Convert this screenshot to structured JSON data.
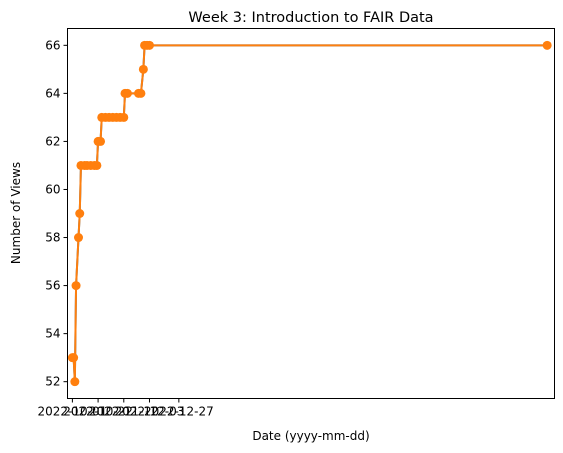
{
  "chart_data": {
    "type": "line",
    "title": "Week 3: Introduction to FAIR Data",
    "xlabel": "Date (yyyy-mm-dd)",
    "ylabel": "Number of Views",
    "ylim": [
      51.3,
      66.7
    ],
    "yticks": [
      52,
      54,
      56,
      58,
      60,
      62,
      64,
      66
    ],
    "xlim": [
      "2022-09-27",
      "2023-10-30"
    ],
    "xticks": [
      "2022-10-01",
      "2022-10-22",
      "2022-11-12",
      "2022-12-03",
      "2022-12-27"
    ],
    "tick_labels": [
      "2022-10-01",
      "2022-10-22",
      "2022-11-12",
      "2022-12-03",
      "2022-12-27"
    ],
    "grid": false,
    "legend": "none",
    "series": [
      {
        "colors": {
          "line": "#1f77b4",
          "line_overlay": "#ff7f0e",
          "marker": "#ff7f0e"
        },
        "points": [
          {
            "x": "2022-10-01",
            "y": 53
          },
          {
            "x": "2022-10-02",
            "y": 53
          },
          {
            "x": "2022-10-03",
            "y": 52
          },
          {
            "x": "2022-10-04",
            "y": 56
          },
          {
            "x": "2022-10-06",
            "y": 58
          },
          {
            "x": "2022-10-07",
            "y": 59
          },
          {
            "x": "2022-10-08",
            "y": 61
          },
          {
            "x": "2022-10-11",
            "y": 61
          },
          {
            "x": "2022-10-13",
            "y": 61
          },
          {
            "x": "2022-10-16",
            "y": 61
          },
          {
            "x": "2022-10-19",
            "y": 61
          },
          {
            "x": "2022-10-21",
            "y": 61
          },
          {
            "x": "2022-10-22",
            "y": 62
          },
          {
            "x": "2022-10-24",
            "y": 62
          },
          {
            "x": "2022-10-25",
            "y": 63
          },
          {
            "x": "2022-10-28",
            "y": 63
          },
          {
            "x": "2022-10-31",
            "y": 63
          },
          {
            "x": "2022-11-03",
            "y": 63
          },
          {
            "x": "2022-11-06",
            "y": 63
          },
          {
            "x": "2022-11-09",
            "y": 63
          },
          {
            "x": "2022-11-12",
            "y": 63
          },
          {
            "x": "2022-11-13",
            "y": 64
          },
          {
            "x": "2022-11-15",
            "y": 64
          },
          {
            "x": "2022-11-24",
            "y": 64
          },
          {
            "x": "2022-11-26",
            "y": 64
          },
          {
            "x": "2022-11-28",
            "y": 65
          },
          {
            "x": "2022-11-29",
            "y": 66
          },
          {
            "x": "2022-12-01",
            "y": 66
          },
          {
            "x": "2022-12-03",
            "y": 66
          },
          {
            "x": "2023-10-24",
            "y": 66
          }
        ]
      }
    ]
  }
}
